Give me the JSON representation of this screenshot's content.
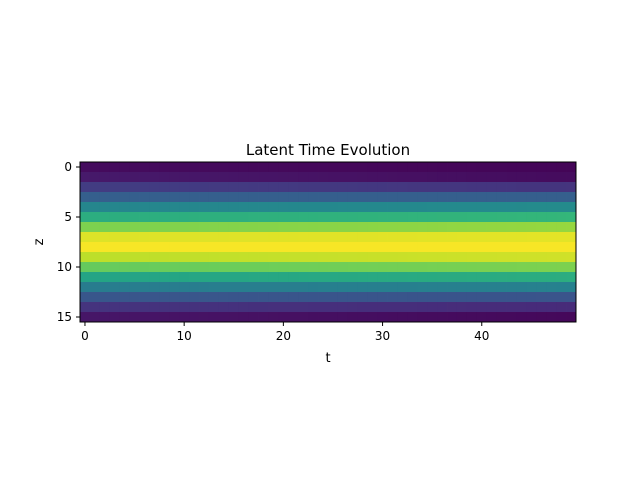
{
  "chart_data": {
    "type": "heatmap",
    "title": "Latent Time Evolution",
    "xlabel": "t",
    "ylabel": "z",
    "colormap": "viridis",
    "n_cols": 50,
    "n_rows": 16,
    "xlim": [
      -0.5,
      49.5
    ],
    "ylim": [
      15.5,
      -0.5
    ],
    "y_inverted": true,
    "xticks": [
      0,
      10,
      20,
      30,
      40
    ],
    "yticks": [
      0,
      5,
      10,
      15
    ],
    "grid": false,
    "row_profile_start": [
      0.03,
      0.07,
      0.18,
      0.3,
      0.46,
      0.62,
      0.8,
      0.95,
      0.99,
      0.9,
      0.76,
      0.58,
      0.42,
      0.27,
      0.15,
      0.06
    ],
    "row_profile_end": [
      0.01,
      0.03,
      0.15,
      0.3,
      0.48,
      0.66,
      0.84,
      0.96,
      0.99,
      0.93,
      0.8,
      0.62,
      0.44,
      0.26,
      0.12,
      0.02
    ]
  }
}
